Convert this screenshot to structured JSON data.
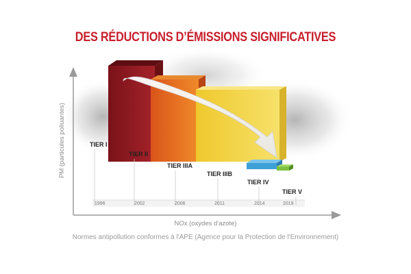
{
  "title": "DES RÉDUCTIONS D’ÉMISSIONS SIGNIFICATIVES",
  "y_axis_label": "PM (particules polluantes)",
  "x_axis_label": "NOx (oxydes d'azote)",
  "caption": "Normes antipollution conformes à l'APE (Agence pour la Protection de l'Environnement)",
  "tiers": [
    {
      "label": "TIER I",
      "year": "1996",
      "color": "#8e1c22"
    },
    {
      "label": "TIER II",
      "year": "2002",
      "color": "#e3661b"
    },
    {
      "label": "TIER IIIA",
      "year": "2006",
      "color": "#f2d33a"
    },
    {
      "label": "TIER IIIB",
      "year": "2011",
      "color": "#8e1c22"
    },
    {
      "label": "TIER IV",
      "year": "2014",
      "color": "#3fa0d8"
    },
    {
      "label": "TIER V",
      "year": "2019",
      "color": "#7fc241"
    }
  ]
}
